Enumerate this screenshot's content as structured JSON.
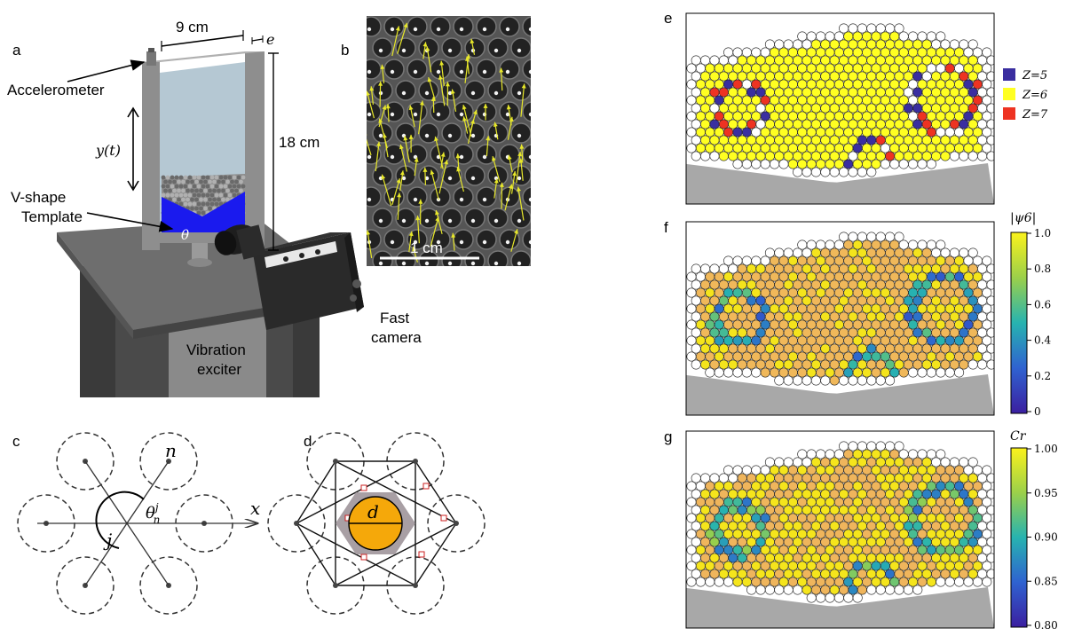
{
  "panel_letters": [
    "a",
    "b",
    "c",
    "d",
    "e",
    "f",
    "g"
  ],
  "panel_a": {
    "width_label": "9 cm",
    "thickness_label": "e",
    "accelerometer": "Accelerometer",
    "displacement": "y(t)",
    "height_label": "18 cm",
    "template_line1": "V-shape",
    "template_line2": "Template",
    "angle": "θ",
    "camera_line1": "Fast",
    "camera_line2": "camera",
    "exciter_line1": "Vibration",
    "exciter_line2": "exciter"
  },
  "panel_b": {
    "scalebar_label": "1 cm"
  },
  "panel_c": {
    "n_label": "n",
    "x_label": "x",
    "theta_label": "θ",
    "theta_sup": "j",
    "theta_sub": "n",
    "j_label": "j"
  },
  "panel_d": {
    "d_label": "d"
  },
  "panel_e": {
    "legend": [
      {
        "label": "Z=5",
        "color": "#3a2ea0"
      },
      {
        "label": "Z=6",
        "color": "#ffff22"
      },
      {
        "label": "Z=7",
        "color": "#ee3322"
      }
    ]
  },
  "panel_f": {
    "colorbar_title": "|ψ6|",
    "ticks": [
      "1.0",
      "0.8",
      "0.6",
      "0.4",
      "0.2",
      "0"
    ]
  },
  "panel_g": {
    "colorbar_title": "Cr",
    "ticks": [
      "1.00",
      "0.95",
      "0.90",
      "0.85",
      "0.80"
    ]
  },
  "colors": {
    "template_blue": "#1a1aee",
    "arrow_yellow": "#e8e82a",
    "disk_orange": "#f5a80a",
    "hex_gray": "#a89fa4",
    "floor_gray": "#a8a8a8"
  }
}
